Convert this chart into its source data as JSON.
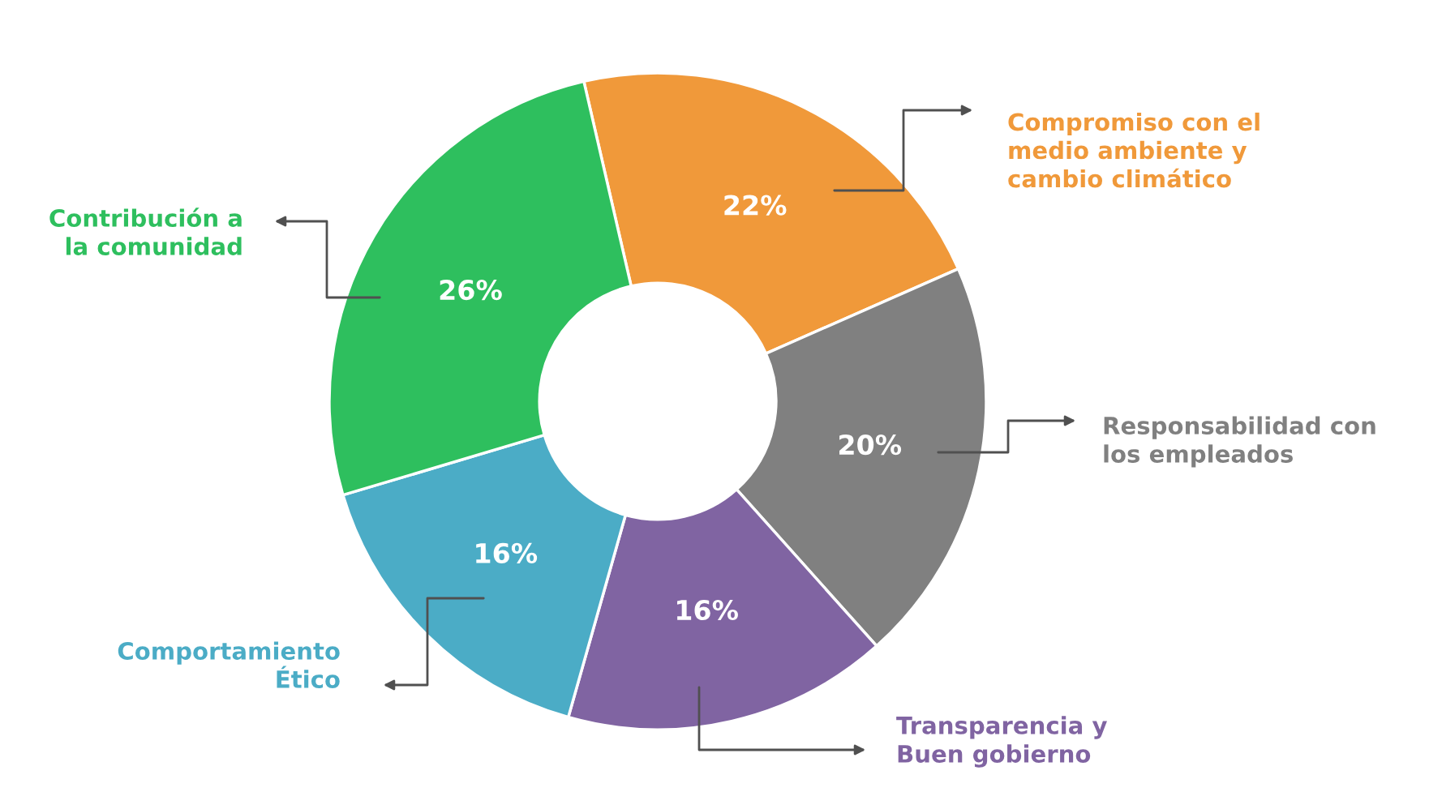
{
  "chart_data": {
    "type": "donut",
    "categories": [
      "Compromiso con el\nmedio ambiente y\ncambio climático",
      "Responsabilidad con\nlos empleados",
      "Transparencia y\nBuen gobierno",
      "Comportamiento\nÉtico",
      "Contribución a\nla comunidad"
    ],
    "values": [
      22,
      20,
      16,
      16,
      26
    ],
    "value_labels": [
      "22%",
      "20%",
      "16%",
      "16%",
      "26%"
    ],
    "colors": [
      "#f0993a",
      "#808080",
      "#8064a2",
      "#4bacc6",
      "#2ebf5e"
    ],
    "legend": false
  }
}
